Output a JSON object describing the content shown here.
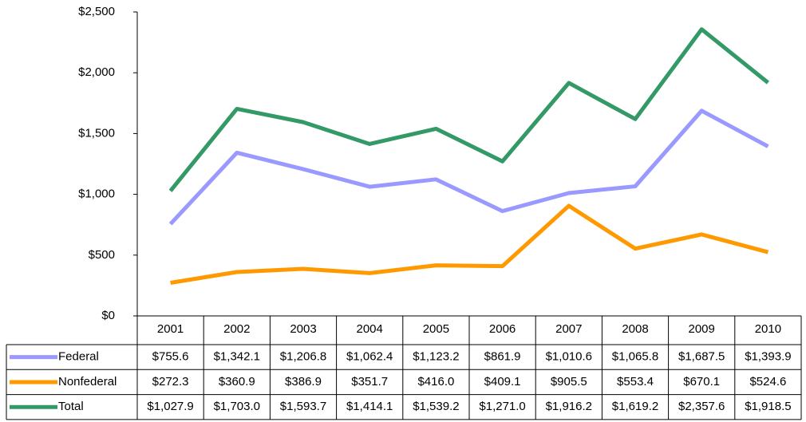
{
  "chart_data": {
    "type": "line",
    "categories": [
      "2001",
      "2002",
      "2003",
      "2004",
      "2005",
      "2006",
      "2007",
      "2008",
      "2009",
      "2010"
    ],
    "series": [
      {
        "name": "Federal",
        "color": "#9999ff",
        "values": [
          755.6,
          1342.1,
          1206.8,
          1062.4,
          1123.2,
          861.9,
          1010.6,
          1065.8,
          1687.5,
          1393.9
        ],
        "value_labels": [
          "$755.6",
          "$1,342.1",
          "$1,206.8",
          "$1,062.4",
          "$1,123.2",
          "$861.9",
          "$1,010.6",
          "$1,065.8",
          "$1,687.5",
          "$1,393.9"
        ]
      },
      {
        "name": "Nonfederal",
        "color": "#ff9900",
        "values": [
          272.3,
          360.9,
          386.9,
          351.7,
          416.0,
          409.1,
          905.5,
          553.4,
          670.1,
          524.6
        ],
        "value_labels": [
          "$272.3",
          "$360.9",
          "$386.9",
          "$351.7",
          "$416.0",
          "$409.1",
          "$905.5",
          "$553.4",
          "$670.1",
          "$524.6"
        ]
      },
      {
        "name": "Total",
        "color": "#339966",
        "values": [
          1027.9,
          1703.0,
          1593.7,
          1414.1,
          1539.2,
          1271.0,
          1916.2,
          1619.2,
          2357.6,
          1918.5
        ],
        "value_labels": [
          "$1,027.9",
          "$1,703.0",
          "$1,593.7",
          "$1,414.1",
          "$1,539.2",
          "$1,271.0",
          "$1,916.2",
          "$1,619.2",
          "$2,357.6",
          "$1,918.5"
        ]
      }
    ],
    "ylim": [
      0,
      2500
    ],
    "yticks": [
      {
        "value": 0,
        "label": "$0"
      },
      {
        "value": 500,
        "label": "$500"
      },
      {
        "value": 1000,
        "label": "$1,000"
      },
      {
        "value": 1500,
        "label": "$1,500"
      },
      {
        "value": 2000,
        "label": "$2,000"
      },
      {
        "value": 2500,
        "label": "$2,500"
      }
    ],
    "grid": false
  }
}
